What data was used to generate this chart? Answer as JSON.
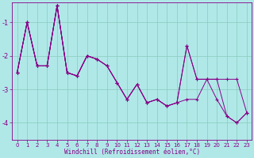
{
  "series": [
    {
      "x": [
        0,
        1,
        2,
        3,
        4,
        5,
        6,
        7,
        8,
        9,
        10,
        11,
        12,
        13,
        14,
        15,
        16,
        17,
        18,
        19,
        20,
        21,
        22,
        23
      ],
      "y": [
        -2.5,
        -1.0,
        -2.3,
        -2.3,
        -0.5,
        -2.5,
        -2.6,
        -2.0,
        -2.1,
        -2.3,
        -2.8,
        -3.3,
        -2.85,
        -3.4,
        -3.3,
        -3.5,
        -3.4,
        -3.3,
        -3.3,
        -2.7,
        -3.3,
        -3.8,
        -4.0,
        -3.7
      ]
    },
    {
      "x": [
        0,
        1,
        2,
        3,
        4,
        5,
        6,
        7,
        8,
        9,
        10,
        11,
        12,
        13,
        14,
        15,
        16,
        17,
        18,
        19,
        20,
        21,
        22,
        23
      ],
      "y": [
        -2.5,
        -1.0,
        -2.3,
        -2.3,
        -0.5,
        -2.5,
        -2.6,
        -2.0,
        -2.1,
        -2.3,
        -2.8,
        -3.3,
        -2.85,
        -3.4,
        -3.3,
        -3.5,
        -3.4,
        -1.7,
        -2.7,
        -2.7,
        -2.7,
        -3.8,
        -4.0,
        -3.7
      ]
    },
    {
      "x": [
        0,
        1,
        2,
        3,
        4,
        5,
        6,
        7,
        8,
        9,
        10,
        11,
        12,
        13,
        14,
        15,
        16,
        17,
        18,
        19,
        20,
        21,
        22,
        23
      ],
      "y": [
        -2.5,
        -1.0,
        -2.3,
        -2.3,
        -0.5,
        -2.5,
        -2.6,
        -2.0,
        -2.1,
        -2.3,
        -2.8,
        -3.3,
        -2.85,
        -3.4,
        -3.3,
        -3.5,
        -3.4,
        -1.7,
        -2.7,
        -2.7,
        -2.7,
        -2.7,
        -2.7,
        -3.7
      ]
    },
    {
      "x": [
        0,
        1,
        2,
        3,
        4,
        5,
        6,
        7,
        8
      ],
      "y": [
        -2.5,
        -1.0,
        -2.3,
        -2.3,
        -0.5,
        -2.5,
        -2.6,
        -2.0,
        -2.1
      ]
    }
  ],
  "color": "#880088",
  "bg_color": "#b0e8e8",
  "grid_color": "#88ccbb",
  "xlabel": "Windchill (Refroidissement éolien,°C)",
  "xlim": [
    -0.5,
    23.5
  ],
  "ylim": [
    -4.5,
    -0.4
  ],
  "yticks": [
    -4,
    -3,
    -2,
    -1
  ],
  "xticks": [
    0,
    1,
    2,
    3,
    4,
    5,
    6,
    7,
    8,
    9,
    10,
    11,
    12,
    13,
    14,
    15,
    16,
    17,
    18,
    19,
    20,
    21,
    22,
    23
  ],
  "tick_fontsize": 5.0,
  "xlabel_fontsize": 5.5
}
